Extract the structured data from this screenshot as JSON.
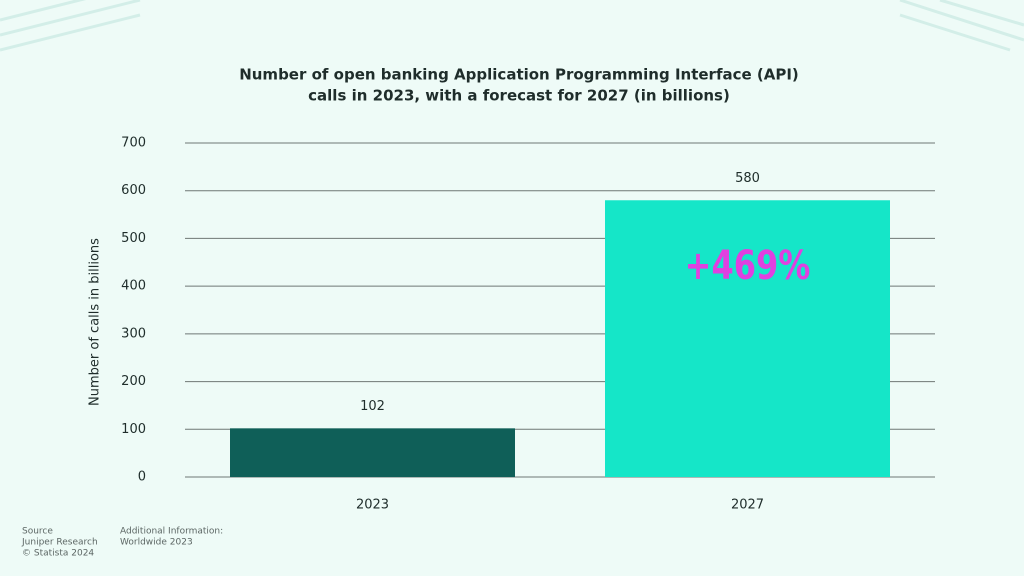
{
  "chart_data": {
    "type": "bar",
    "title": [
      "Number of open banking Application Programming Interface (API)",
      "calls in 2023, with a forecast for 2027 (in billions)"
    ],
    "ylabel": "Number of calls in billions",
    "categories": [
      "2023",
      "2027"
    ],
    "values": [
      102,
      580
    ],
    "colors": [
      "#0f5f58",
      "#15e6c8"
    ],
    "ylim": [
      0,
      700
    ],
    "yticks": [
      0,
      100,
      200,
      300,
      400,
      500,
      600,
      700
    ],
    "grid": true,
    "annotation": "+469%"
  },
  "footer": {
    "source_label": "Source",
    "source_lines": [
      "Juniper Research",
      "© Statista 2024"
    ],
    "info_label": "Additional Information:",
    "info_lines": [
      "Worldwide 2023"
    ]
  }
}
